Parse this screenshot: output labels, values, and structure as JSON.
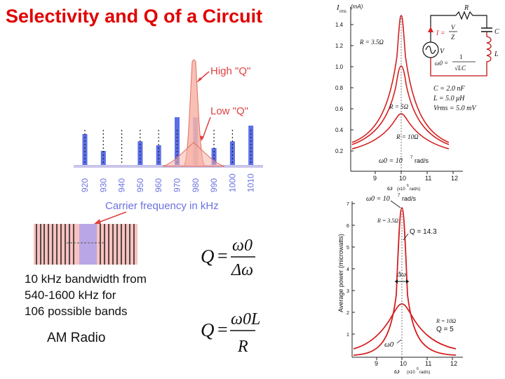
{
  "slide": {
    "title": "Selectivity and Q of a Circuit"
  },
  "colors": {
    "title": "#e00000",
    "bar": "#5b6ee8",
    "highq_fill": "#f7b4a8",
    "curve": "#d42020",
    "band_pink": "#f7c3c0",
    "band_purple": "#b9a6e6",
    "label_red": "#e04040"
  },
  "am_spectrum": {
    "high_q_label": "High \"Q\"",
    "low_q_label": "Low \"Q\"",
    "xlabel": "Carrier frequency in kHz",
    "frequencies": [
      "920",
      "930",
      "940",
      "950",
      "960",
      "970",
      "980",
      "990",
      "1000",
      "1010"
    ],
    "bar_heights": [
      0.55,
      0.25,
      0,
      0.42,
      0.35,
      0.85,
      0.85,
      0.3,
      0.42,
      0.7
    ]
  },
  "band_box": {
    "text_lines": [
      "10 kHz bandwidth from",
      "540-1600 kHz for",
      "106 possible bands"
    ],
    "footer": "AM Radio"
  },
  "formulas": {
    "q1_lhs": "Q",
    "q1_num": "ω0",
    "q1_den": "Δω",
    "q2_lhs": "Q",
    "q2_num": "ω0L",
    "q2_den": "R"
  },
  "current_plot": {
    "ylabel": "I",
    "ylabel_sub": "rms",
    "yunit": "(mA)",
    "yticks": [
      "1.4",
      "1.2",
      "1.0",
      "0.8",
      "0.6",
      "0.4",
      "0.2"
    ],
    "xticks": [
      "9",
      "10",
      "11",
      "12"
    ],
    "xlabel": "ω",
    "xunit": "(x10",
    "xunit_exp": "6",
    "xunit_tail": "rad/s)",
    "curve_labels": [
      "R = 3.5Ω",
      "R = 5Ω",
      "R = 10Ω"
    ],
    "resonance_note": "ω0 = 10",
    "resonance_exp": "7",
    "resonance_unit": "rad/s",
    "params": [
      "C = 2.0 nF",
      "L = 5.0 μH",
      "Vrms = 5.0 mV"
    ],
    "circuit": {
      "r_label": "R",
      "c_label": "C",
      "l_label": "L",
      "v_label": "V",
      "i_eq_lhs": "I =",
      "i_eq_num": "V",
      "i_eq_den": "Z",
      "w_eq_lhs": "ω0 =",
      "w_eq_num": "1",
      "w_eq_den": "√LC"
    }
  },
  "power_plot": {
    "top_note": "ω0 = 10",
    "top_exp": "7",
    "top_unit": "rad/s",
    "ylabel": "Average power (microwatts)",
    "yticks": [
      "7",
      "6",
      "5",
      "4",
      "3",
      "2",
      "1"
    ],
    "xticks": [
      "9",
      "10",
      "11",
      "12"
    ],
    "xlabel": "ω",
    "xunit": "(x10",
    "xunit_exp": "6",
    "xunit_tail": "rad/s)",
    "labels": [
      "R = 3.5Ω",
      "Q = 14.3",
      "Δω",
      "R = 10Ω",
      "Q = 5",
      "ω0"
    ]
  }
}
